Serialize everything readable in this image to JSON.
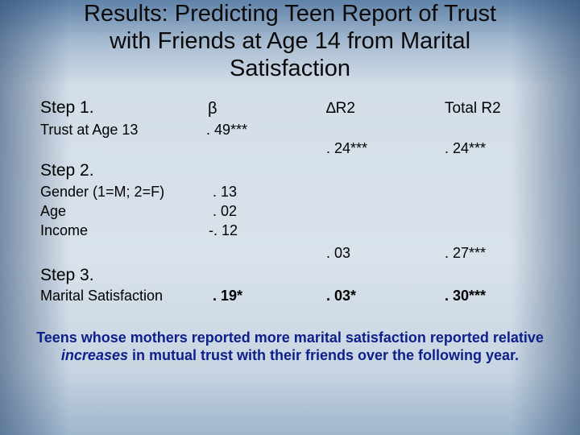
{
  "title": {
    "line1": "Results: Predicting Teen Report of Trust",
    "line2": "with Friends at Age 14 from Marital",
    "line3": "Satisfaction"
  },
  "headers": {
    "step1": "Step 1.",
    "beta": "β",
    "delta_r2": "∆R2",
    "total_r2": "Total R2"
  },
  "step1": {
    "label": "Trust at Age 13",
    "beta": ". 49***",
    "delta_r2": ". 24***",
    "total_r2": ". 24***"
  },
  "step2": {
    "heading": "Step 2.",
    "labels": [
      "Gender (1=M; 2=F)",
      "Age",
      "Income"
    ],
    "betas": [
      ". 13",
      ". 02",
      "-. 12"
    ],
    "delta_r2": ". 03",
    "total_r2": ". 27***"
  },
  "step3": {
    "heading": "Step 3.",
    "label": "Marital Satisfaction",
    "beta": ". 19*",
    "delta_r2": ". 03*",
    "total_r2": ". 30***"
  },
  "conclusion": {
    "part1": "Teens whose mothers reported more marital satisfaction reported relative ",
    "emphasis": "increases",
    "part2": " in mutual trust with their friends over the following year."
  }
}
